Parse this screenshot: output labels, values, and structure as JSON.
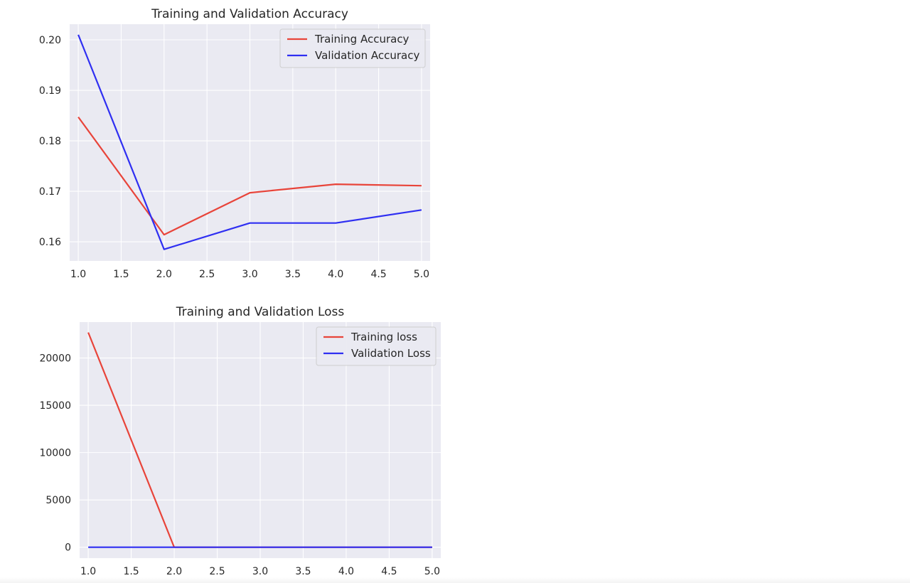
{
  "chart_data": [
    {
      "type": "line",
      "title": "Training and Validation Accuracy",
      "xlabel": "",
      "ylabel": "",
      "x": [
        1.0,
        2.0,
        3.0,
        4.0,
        5.0
      ],
      "xlim": [
        0.9,
        5.1
      ],
      "ylim": [
        0.1562,
        0.2031
      ],
      "xticks": [
        1.0,
        1.5,
        2.0,
        2.5,
        3.0,
        3.5,
        4.0,
        4.5,
        5.0
      ],
      "xtick_labels": [
        "1.0",
        "1.5",
        "2.0",
        "2.5",
        "3.0",
        "3.5",
        "4.0",
        "4.5",
        "5.0"
      ],
      "yticks": [
        0.16,
        0.17,
        0.18,
        0.19,
        0.2
      ],
      "ytick_labels": [
        "0.16",
        "0.17",
        "0.18",
        "0.19",
        "0.20"
      ],
      "grid": true,
      "legend_position": "upper right",
      "series": [
        {
          "name": "Training Accuracy",
          "color": "#e8443a",
          "values": [
            0.1847,
            0.1614,
            0.1697,
            0.1714,
            0.1711
          ]
        },
        {
          "name": "Validation Accuracy",
          "color": "#2f2ff2",
          "values": [
            0.201,
            0.1585,
            0.1637,
            0.1637,
            0.1663
          ]
        }
      ]
    },
    {
      "type": "line",
      "title": "Training and Validation Loss",
      "xlabel": "",
      "ylabel": "",
      "x": [
        1.0,
        2.0,
        3.0,
        4.0,
        5.0
      ],
      "xlim": [
        0.9,
        5.1
      ],
      "ylim": [
        -1150,
        23800
      ],
      "xticks": [
        1.0,
        1.5,
        2.0,
        2.5,
        3.0,
        3.5,
        4.0,
        4.5,
        5.0
      ],
      "xtick_labels": [
        "1.0",
        "1.5",
        "2.0",
        "2.5",
        "3.0",
        "3.5",
        "4.0",
        "4.5",
        "5.0"
      ],
      "yticks": [
        0,
        5000,
        10000,
        15000,
        20000
      ],
      "ytick_labels": [
        "0",
        "5000",
        "10000",
        "15000",
        "20000"
      ],
      "grid": true,
      "legend_position": "upper right",
      "series": [
        {
          "name": "Training loss",
          "color": "#e8443a",
          "values": [
            22700,
            2,
            2,
            2,
            2
          ]
        },
        {
          "name": "Validation Loss",
          "color": "#2f2ff2",
          "values": [
            1.8,
            1.8,
            1.8,
            1.8,
            1.8
          ]
        }
      ]
    }
  ],
  "style": {
    "axes_background": "#eaeaf2",
    "grid_color": "#ffffff",
    "text_color": "#262626"
  }
}
